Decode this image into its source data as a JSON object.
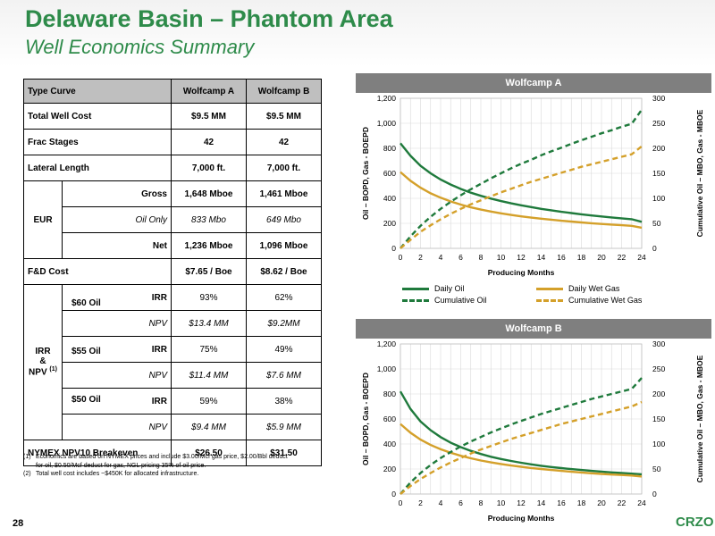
{
  "header": {
    "title": "Delaware Basin – Phantom Area",
    "subtitle": "Well Economics Summary"
  },
  "table": {
    "col_type": "Type Curve",
    "col_a": "Wolfcamp A",
    "col_b": "Wolfcamp B",
    "total_cost": {
      "label": "Total Well Cost",
      "a": "$9.5 MM",
      "b": "$9.5 MM"
    },
    "frac": {
      "label": "Frac Stages",
      "a": "42",
      "b": "42"
    },
    "lateral": {
      "label": "Lateral Length",
      "a": "7,000 ft.",
      "b": "7,000 ft."
    },
    "eur": {
      "label": "EUR",
      "gross": {
        "label": "Gross",
        "a": "1,648 Mboe",
        "b": "1,461 Mboe"
      },
      "oil": {
        "label": "Oil Only",
        "a": "833 Mbo",
        "b": "649 Mbo"
      },
      "net": {
        "label": "Net",
        "a": "1,236 Mboe",
        "b": "1,096 Mboe"
      }
    },
    "fd": {
      "label": "F&D Cost",
      "a": "$7.65 / Boe",
      "b": "$8.62 / Boe"
    },
    "irr_group": {
      "line1": "IRR",
      "line2": "&",
      "line3": "NPV",
      "sup": "(1)"
    },
    "irr_label": "IRR",
    "npv_label": "NPV",
    "cases": [
      {
        "price": "$60 Oil",
        "irr_a": "93%",
        "irr_b": "62%",
        "npv_a": "$13.4 MM",
        "npv_b": "$9.2MM"
      },
      {
        "price": "$55 Oil",
        "irr_a": "75%",
        "irr_b": "49%",
        "npv_a": "$11.4 MM",
        "npv_b": "$7.6 MM"
      },
      {
        "price": "$50 Oil",
        "irr_a": "59%",
        "irr_b": "38%",
        "npv_a": "$9.4 MM",
        "npv_b": "$5.9 MM"
      }
    ],
    "breakeven": {
      "label": "NYMEX NPV10 Breakeven",
      "a": "$26.50",
      "b": "$31.50"
    }
  },
  "footnotes": [
    {
      "key": "(1)",
      "text": "Economics are based on NYMEX prices and include $3.00/Mcf gas price, $2.00/Bbl deduct for oil, $0.50/Mcf deduct for gas, NGL pricing 35% of oil price."
    },
    {
      "key": "(2)",
      "text": "Total well cost includes ~$450K for allocated infrastructure."
    }
  ],
  "legend": {
    "daily_oil": "Daily Oil",
    "daily_wet_gas": "Daily Wet Gas",
    "cum_oil": "Cumulative Oil",
    "cum_wet_gas": "Cumulative Wet Gas"
  },
  "colors": {
    "oil": "#1f7a3c",
    "gas": "#d4a02a",
    "accent": "#2e8b4a",
    "panel": "#7f7f7f"
  },
  "chart_data": [
    {
      "type": "line",
      "title": "Wolfcamp A",
      "xlabel": "Producing Months",
      "ylabel": "Oil – BOPD, Gas - BOEPD",
      "y2label": "Cumulative Oil – MBO, Gas - MBOE",
      "xlim": [
        0,
        24
      ],
      "ylim": [
        0,
        1200
      ],
      "y2lim": [
        0,
        300
      ],
      "xticks": [
        0,
        2,
        4,
        6,
        8,
        10,
        12,
        14,
        16,
        18,
        20,
        22,
        24
      ],
      "yticks": [
        0,
        200,
        400,
        600,
        800,
        1000,
        1200
      ],
      "y2ticks": [
        0,
        50,
        100,
        150,
        200,
        250,
        300
      ],
      "x": [
        0,
        1,
        2,
        3,
        4,
        5,
        6,
        7,
        8,
        9,
        10,
        11,
        12,
        13,
        14,
        15,
        16,
        17,
        18,
        19,
        20,
        21,
        22,
        23,
        24
      ],
      "series": [
        {
          "name": "Daily Oil",
          "axis": "left",
          "style": "solid",
          "color": "#1f7a3c",
          "values": [
            840,
            740,
            660,
            600,
            550,
            510,
            475,
            445,
            420,
            398,
            378,
            360,
            344,
            330,
            316,
            304,
            292,
            282,
            272,
            263,
            255,
            247,
            240,
            233,
            212
          ]
        },
        {
          "name": "Daily Wet Gas",
          "axis": "left",
          "style": "solid",
          "color": "#d4a02a",
          "values": [
            610,
            540,
            485,
            440,
            405,
            375,
            350,
            328,
            310,
            294,
            280,
            267,
            256,
            246,
            237,
            229,
            221,
            214,
            207,
            201,
            195,
            190,
            185,
            180,
            165
          ]
        },
        {
          "name": "Cumulative Oil",
          "axis": "right",
          "style": "dashed",
          "color": "#1f7a3c",
          "values": [
            0,
            24,
            45,
            63,
            79,
            93,
            106,
            118,
            129,
            140,
            150,
            160,
            169,
            177,
            186,
            194,
            201,
            209,
            216,
            223,
            230,
            236,
            243,
            249,
            277
          ]
        },
        {
          "name": "Cumulative Wet Gas",
          "axis": "right",
          "style": "dashed",
          "color": "#d4a02a",
          "values": [
            0,
            17,
            33,
            46,
            58,
            69,
            79,
            88,
            96,
            104,
            112,
            119,
            126,
            133,
            139,
            145,
            151,
            157,
            163,
            168,
            173,
            178,
            183,
            188,
            204
          ]
        }
      ]
    },
    {
      "type": "line",
      "title": "Wolfcamp B",
      "xlabel": "Producing Months",
      "ylabel": "Oil – BOPD, Gas - BOEPD",
      "y2label": "Cumulative Oil – MBO, Gas - MBOE",
      "xlim": [
        0,
        24
      ],
      "ylim": [
        0,
        1200
      ],
      "y2lim": [
        0,
        300
      ],
      "xticks": [
        0,
        2,
        4,
        6,
        8,
        10,
        12,
        14,
        16,
        18,
        20,
        22,
        24
      ],
      "yticks": [
        0,
        200,
        400,
        600,
        800,
        1000,
        1200
      ],
      "y2ticks": [
        0,
        50,
        100,
        150,
        200,
        250,
        300
      ],
      "x": [
        0,
        1,
        2,
        3,
        4,
        5,
        6,
        7,
        8,
        9,
        10,
        11,
        12,
        13,
        14,
        15,
        16,
        17,
        18,
        19,
        20,
        21,
        22,
        23,
        24
      ],
      "series": [
        {
          "name": "Daily Oil",
          "axis": "left",
          "style": "solid",
          "color": "#1f7a3c",
          "values": [
            820,
            680,
            580,
            510,
            455,
            410,
            375,
            345,
            320,
            298,
            280,
            264,
            250,
            237,
            226,
            216,
            207,
            199,
            192,
            185,
            179,
            173,
            168,
            163,
            158
          ]
        },
        {
          "name": "Daily Wet Gas",
          "axis": "left",
          "style": "solid",
          "color": "#d4a02a",
          "values": [
            560,
            490,
            435,
            392,
            358,
            330,
            306,
            286,
            268,
            253,
            240,
            228,
            218,
            208,
            200,
            192,
            185,
            178,
            172,
            166,
            161,
            156,
            152,
            148,
            140
          ]
        },
        {
          "name": "Cumulative Oil",
          "axis": "right",
          "style": "dashed",
          "color": "#1f7a3c",
          "values": [
            0,
            23,
            42,
            58,
            72,
            84,
            95,
            105,
            114,
            123,
            131,
            139,
            146,
            153,
            160,
            166,
            172,
            178,
            184,
            190,
            195,
            200,
            205,
            210,
            232
          ]
        },
        {
          "name": "Cumulative Wet Gas",
          "axis": "right",
          "style": "dashed",
          "color": "#d4a02a",
          "values": [
            0,
            16,
            30,
            42,
            53,
            63,
            72,
            81,
            89,
            96,
            103,
            110,
            116,
            122,
            128,
            134,
            140,
            145,
            150,
            155,
            160,
            165,
            170,
            175,
            184
          ]
        }
      ]
    }
  ],
  "page": {
    "number": "28",
    "ticker": "CRZO"
  }
}
